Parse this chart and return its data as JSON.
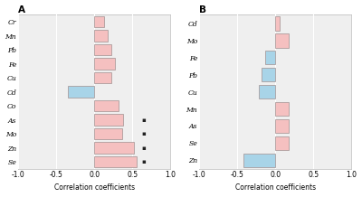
{
  "panel_A": {
    "labels": [
      "Cr",
      "Mn",
      "Pb",
      "Fe",
      "Cu",
      "Cd",
      "Co",
      "As",
      "Mo",
      "Zn",
      "Se"
    ],
    "values": [
      0.13,
      0.18,
      0.22,
      0.27,
      0.22,
      -0.35,
      0.32,
      0.38,
      0.37,
      0.52,
      0.55
    ],
    "colors": [
      "pink",
      "pink",
      "pink",
      "pink",
      "pink",
      "blue",
      "pink",
      "pink",
      "pink",
      "pink",
      "pink"
    ],
    "stars": [
      false,
      false,
      false,
      false,
      false,
      false,
      false,
      true,
      true,
      true,
      true
    ],
    "title": "A",
    "xlabel": "Correlation coefficients",
    "xlim": [
      -1.0,
      1.0
    ],
    "xticks": [
      -1.0,
      -0.5,
      0.0,
      0.5,
      1.0
    ],
    "xticklabels": [
      "-1.0",
      "-0.5",
      "0.0",
      "0.5",
      "1.0"
    ]
  },
  "panel_B": {
    "labels": [
      "Cd",
      "Mo",
      "Fe",
      "Pb",
      "Cu",
      "Mn",
      "As",
      "Se",
      "Zn"
    ],
    "values": [
      0.05,
      0.17,
      -0.13,
      -0.18,
      -0.22,
      0.18,
      0.17,
      0.18,
      -0.42
    ],
    "colors": [
      "pink",
      "pink",
      "blue",
      "blue",
      "blue",
      "pink",
      "pink",
      "pink",
      "blue"
    ],
    "stars": [
      false,
      false,
      false,
      false,
      false,
      false,
      false,
      false,
      false
    ],
    "title": "B",
    "xlabel": "Correlation coefficients",
    "xlim": [
      -1.0,
      1.0
    ],
    "xticks": [
      -1.0,
      -0.5,
      0.0,
      0.5,
      1.0
    ],
    "xticklabels": [
      "-1.0",
      "-0.5",
      "0.0",
      "0.5",
      "1.0"
    ]
  },
  "pink_color": "#f5c0c0",
  "blue_color": "#a8d4e8",
  "edge_color": "#a09090",
  "bg_color": "#efefef",
  "star_color": "#222222",
  "bar_height": 0.82,
  "fontsize_labels": 5.5,
  "fontsize_title": 7.5,
  "fontsize_xlabel": 5.5,
  "fontsize_ticks": 5.5
}
